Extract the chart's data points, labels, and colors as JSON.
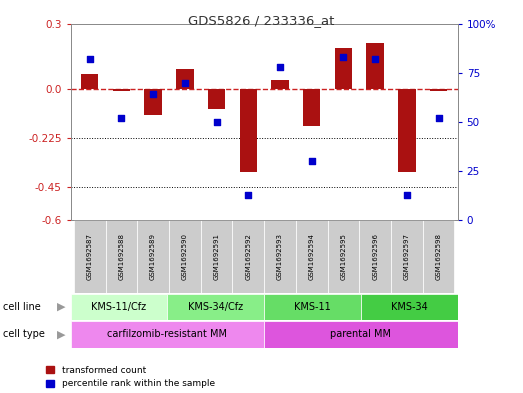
{
  "title": "GDS5826 / 233336_at",
  "samples": [
    "GSM1692587",
    "GSM1692588",
    "GSM1692589",
    "GSM1692590",
    "GSM1692591",
    "GSM1692592",
    "GSM1692593",
    "GSM1692594",
    "GSM1692595",
    "GSM1692596",
    "GSM1692597",
    "GSM1692598"
  ],
  "transformed_count": [
    0.07,
    -0.01,
    -0.12,
    0.09,
    -0.09,
    -0.38,
    0.04,
    -0.17,
    0.19,
    0.21,
    -0.38,
    -0.01
  ],
  "percentile_rank_pct": [
    82,
    52,
    64,
    70,
    50,
    13,
    78,
    30,
    83,
    82,
    13,
    52
  ],
  "ylim_left": [
    -0.6,
    0.3
  ],
  "ylim_right": [
    0,
    100
  ],
  "yticks_left": [
    -0.6,
    -0.45,
    -0.225,
    0.0,
    0.3
  ],
  "yticks_right": [
    0,
    25,
    50,
    75,
    100
  ],
  "hline_y": 0.0,
  "dotted_lines": [
    -0.225,
    -0.45
  ],
  "cell_line_groups": [
    {
      "label": "KMS-11/Cfz",
      "start": 0,
      "end": 3,
      "color": "#ccffcc"
    },
    {
      "label": "KMS-34/Cfz",
      "start": 3,
      "end": 6,
      "color": "#88ee88"
    },
    {
      "label": "KMS-11",
      "start": 6,
      "end": 9,
      "color": "#66dd66"
    },
    {
      "label": "KMS-34",
      "start": 9,
      "end": 12,
      "color": "#44cc44"
    }
  ],
  "cell_type_groups": [
    {
      "label": "carfilzomib-resistant MM",
      "start": 0,
      "end": 6,
      "color": "#ee88ee"
    },
    {
      "label": "parental MM",
      "start": 6,
      "end": 12,
      "color": "#dd55dd"
    }
  ],
  "bar_color": "#aa1111",
  "dot_color": "#0000cc",
  "bar_width": 0.55,
  "dot_size": 18,
  "background_color": "#ffffff",
  "gsm_box_color": "#cccccc",
  "legend_red": "transformed count",
  "legend_blue": "percentile rank within the sample",
  "hline_color": "#cc2222",
  "left_tick_color": "#cc2222",
  "right_tick_color": "#0000cc"
}
